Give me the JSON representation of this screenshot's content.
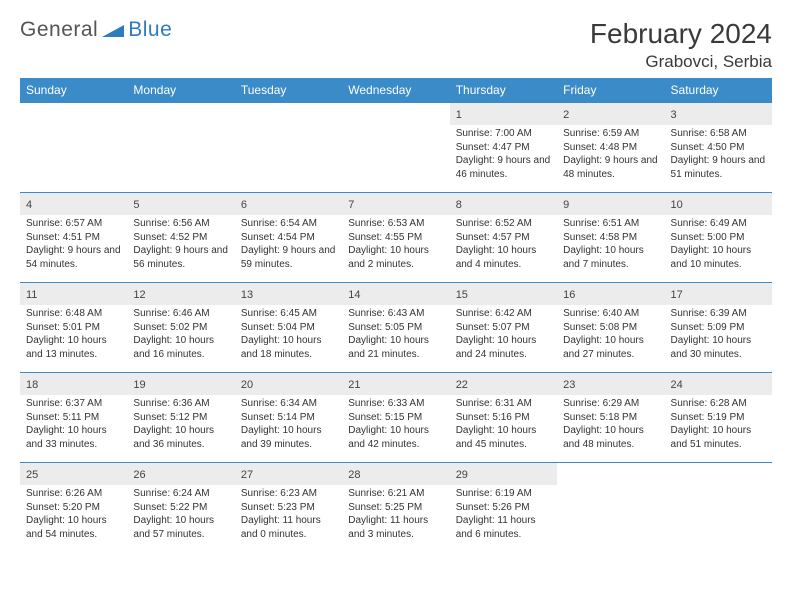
{
  "brand": {
    "part1": "General",
    "part2": "Blue"
  },
  "title": "February 2024",
  "location": "Grabovci, Serbia",
  "colors": {
    "header_bg": "#3b8bc9",
    "header_text": "#ffffff",
    "daynum_bg": "#ececec",
    "text": "#333333",
    "brand_blue": "#2f7bbf",
    "brand_gray": "#555555",
    "page_bg": "#ffffff"
  },
  "weekdays": [
    "Sunday",
    "Monday",
    "Tuesday",
    "Wednesday",
    "Thursday",
    "Friday",
    "Saturday"
  ],
  "grid": {
    "rows": 5,
    "cols": 7,
    "first_day_col": 4,
    "last_day": 29
  },
  "days": [
    {
      "n": 1,
      "sunrise": "7:00 AM",
      "sunset": "4:47 PM",
      "dl": "9 hours and 46 minutes."
    },
    {
      "n": 2,
      "sunrise": "6:59 AM",
      "sunset": "4:48 PM",
      "dl": "9 hours and 48 minutes."
    },
    {
      "n": 3,
      "sunrise": "6:58 AM",
      "sunset": "4:50 PM",
      "dl": "9 hours and 51 minutes."
    },
    {
      "n": 4,
      "sunrise": "6:57 AM",
      "sunset": "4:51 PM",
      "dl": "9 hours and 54 minutes."
    },
    {
      "n": 5,
      "sunrise": "6:56 AM",
      "sunset": "4:52 PM",
      "dl": "9 hours and 56 minutes."
    },
    {
      "n": 6,
      "sunrise": "6:54 AM",
      "sunset": "4:54 PM",
      "dl": "9 hours and 59 minutes."
    },
    {
      "n": 7,
      "sunrise": "6:53 AM",
      "sunset": "4:55 PM",
      "dl": "10 hours and 2 minutes."
    },
    {
      "n": 8,
      "sunrise": "6:52 AM",
      "sunset": "4:57 PM",
      "dl": "10 hours and 4 minutes."
    },
    {
      "n": 9,
      "sunrise": "6:51 AM",
      "sunset": "4:58 PM",
      "dl": "10 hours and 7 minutes."
    },
    {
      "n": 10,
      "sunrise": "6:49 AM",
      "sunset": "5:00 PM",
      "dl": "10 hours and 10 minutes."
    },
    {
      "n": 11,
      "sunrise": "6:48 AM",
      "sunset": "5:01 PM",
      "dl": "10 hours and 13 minutes."
    },
    {
      "n": 12,
      "sunrise": "6:46 AM",
      "sunset": "5:02 PM",
      "dl": "10 hours and 16 minutes."
    },
    {
      "n": 13,
      "sunrise": "6:45 AM",
      "sunset": "5:04 PM",
      "dl": "10 hours and 18 minutes."
    },
    {
      "n": 14,
      "sunrise": "6:43 AM",
      "sunset": "5:05 PM",
      "dl": "10 hours and 21 minutes."
    },
    {
      "n": 15,
      "sunrise": "6:42 AM",
      "sunset": "5:07 PM",
      "dl": "10 hours and 24 minutes."
    },
    {
      "n": 16,
      "sunrise": "6:40 AM",
      "sunset": "5:08 PM",
      "dl": "10 hours and 27 minutes."
    },
    {
      "n": 17,
      "sunrise": "6:39 AM",
      "sunset": "5:09 PM",
      "dl": "10 hours and 30 minutes."
    },
    {
      "n": 18,
      "sunrise": "6:37 AM",
      "sunset": "5:11 PM",
      "dl": "10 hours and 33 minutes."
    },
    {
      "n": 19,
      "sunrise": "6:36 AM",
      "sunset": "5:12 PM",
      "dl": "10 hours and 36 minutes."
    },
    {
      "n": 20,
      "sunrise": "6:34 AM",
      "sunset": "5:14 PM",
      "dl": "10 hours and 39 minutes."
    },
    {
      "n": 21,
      "sunrise": "6:33 AM",
      "sunset": "5:15 PM",
      "dl": "10 hours and 42 minutes."
    },
    {
      "n": 22,
      "sunrise": "6:31 AM",
      "sunset": "5:16 PM",
      "dl": "10 hours and 45 minutes."
    },
    {
      "n": 23,
      "sunrise": "6:29 AM",
      "sunset": "5:18 PM",
      "dl": "10 hours and 48 minutes."
    },
    {
      "n": 24,
      "sunrise": "6:28 AM",
      "sunset": "5:19 PM",
      "dl": "10 hours and 51 minutes."
    },
    {
      "n": 25,
      "sunrise": "6:26 AM",
      "sunset": "5:20 PM",
      "dl": "10 hours and 54 minutes."
    },
    {
      "n": 26,
      "sunrise": "6:24 AM",
      "sunset": "5:22 PM",
      "dl": "10 hours and 57 minutes."
    },
    {
      "n": 27,
      "sunrise": "6:23 AM",
      "sunset": "5:23 PM",
      "dl": "11 hours and 0 minutes."
    },
    {
      "n": 28,
      "sunrise": "6:21 AM",
      "sunset": "5:25 PM",
      "dl": "11 hours and 3 minutes."
    },
    {
      "n": 29,
      "sunrise": "6:19 AM",
      "sunset": "5:26 PM",
      "dl": "11 hours and 6 minutes."
    }
  ],
  "labels": {
    "sunrise": "Sunrise:",
    "sunset": "Sunset:",
    "daylight": "Daylight:"
  }
}
